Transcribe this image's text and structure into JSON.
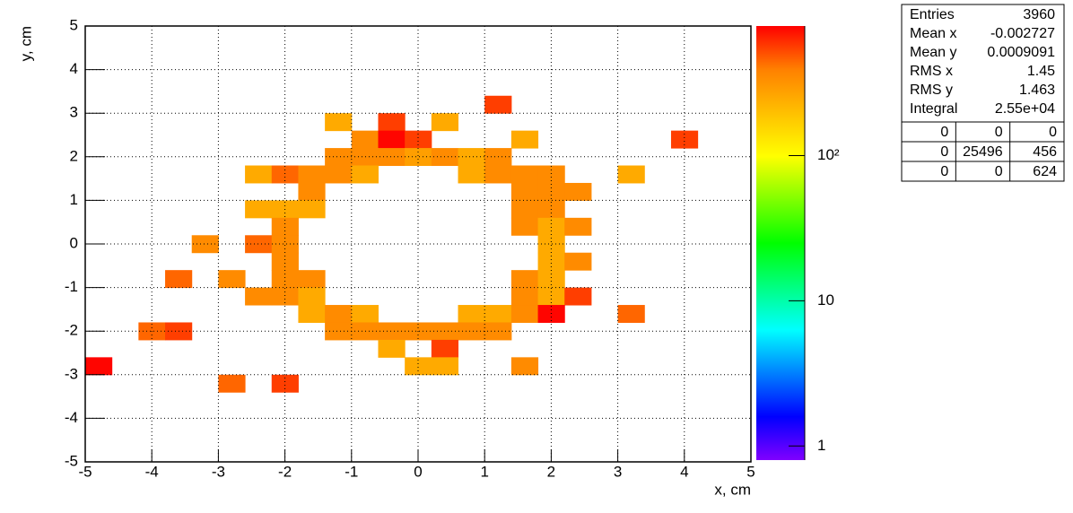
{
  "chart_data": {
    "type": "heatmap",
    "x_label": "x, cm",
    "y_label": "y, cm",
    "xlim": [
      -5,
      5
    ],
    "ylim": [
      -5,
      5
    ],
    "xticks": [
      -5,
      -4,
      -3,
      -2,
      -1,
      0,
      1,
      2,
      3,
      4,
      5
    ],
    "yticks": [
      -5,
      -4,
      -3,
      -2,
      -1,
      0,
      1,
      2,
      3,
      4,
      5
    ],
    "grid": true,
    "bin_width": 0.4,
    "zlim": [
      0.8,
      780
    ],
    "zlog": true,
    "zticks": [
      1,
      10,
      {
        "value": 100,
        "label": "10²"
      }
    ],
    "colorscale": [
      "#8000ff",
      "#0000ff",
      "#0080ff",
      "#00ffff",
      "#00ff80",
      "#00ff00",
      "#80ff00",
      "#ffff00",
      "#ffc000",
      "#ff8000",
      "#ff0000"
    ],
    "cells": [
      {
        "x": 1,
        "y": 3,
        "value": 560
      },
      {
        "x": -1.4,
        "y": 2.6,
        "value": 250
      },
      {
        "x": -0.6,
        "y": 2.6,
        "value": 560
      },
      {
        "x": 0.2,
        "y": 2.6,
        "value": 250
      },
      {
        "x": -1,
        "y": 2.2,
        "value": 350
      },
      {
        "x": -0.6,
        "y": 2.2,
        "value": 760
      },
      {
        "x": -0.2,
        "y": 2.2,
        "value": 560
      },
      {
        "x": 1.4,
        "y": 2.2,
        "value": 250
      },
      {
        "x": 3.8,
        "y": 2.2,
        "value": 560
      },
      {
        "x": -1.4,
        "y": 1.8,
        "value": 350
      },
      {
        "x": -1,
        "y": 1.8,
        "value": 350
      },
      {
        "x": -0.6,
        "y": 1.8,
        "value": 350
      },
      {
        "x": -0.2,
        "y": 1.8,
        "value": 280
      },
      {
        "x": 0.2,
        "y": 1.8,
        "value": 350
      },
      {
        "x": 0.6,
        "y": 1.8,
        "value": 250
      },
      {
        "x": 1,
        "y": 1.8,
        "value": 350
      },
      {
        "x": -2.6,
        "y": 1.4,
        "value": 250
      },
      {
        "x": -2.2,
        "y": 1.4,
        "value": 450
      },
      {
        "x": -1.8,
        "y": 1.4,
        "value": 350
      },
      {
        "x": -1.4,
        "y": 1.4,
        "value": 350
      },
      {
        "x": -1,
        "y": 1.4,
        "value": 250
      },
      {
        "x": 0.6,
        "y": 1.4,
        "value": 250
      },
      {
        "x": 1,
        "y": 1.4,
        "value": 350
      },
      {
        "x": 1.4,
        "y": 1.4,
        "value": 350
      },
      {
        "x": 1.8,
        "y": 1.4,
        "value": 350
      },
      {
        "x": 3,
        "y": 1.4,
        "value": 250
      },
      {
        "x": -1.8,
        "y": 1,
        "value": 350
      },
      {
        "x": 1.4,
        "y": 1,
        "value": 350
      },
      {
        "x": 1.8,
        "y": 1,
        "value": 350
      },
      {
        "x": 2.2,
        "y": 1,
        "value": 350
      },
      {
        "x": -2.6,
        "y": 0.6,
        "value": 250
      },
      {
        "x": -2.2,
        "y": 0.6,
        "value": 250
      },
      {
        "x": -1.8,
        "y": 0.6,
        "value": 250
      },
      {
        "x": 1.4,
        "y": 0.6,
        "value": 350
      },
      {
        "x": 1.8,
        "y": 0.6,
        "value": 350
      },
      {
        "x": -2.2,
        "y": 0.2,
        "value": 350
      },
      {
        "x": 1.4,
        "y": 0.2,
        "value": 350
      },
      {
        "x": 1.8,
        "y": 0.2,
        "value": 250
      },
      {
        "x": 2.2,
        "y": 0.2,
        "value": 350
      },
      {
        "x": -3.4,
        "y": -0.2,
        "value": 350
      },
      {
        "x": -2.6,
        "y": -0.2,
        "value": 450
      },
      {
        "x": -2.2,
        "y": -0.2,
        "value": 350
      },
      {
        "x": 1.8,
        "y": -0.2,
        "value": 250
      },
      {
        "x": -2.2,
        "y": -0.6,
        "value": 350
      },
      {
        "x": 1.8,
        "y": -0.6,
        "value": 250
      },
      {
        "x": 2.2,
        "y": -0.6,
        "value": 350
      },
      {
        "x": -3.8,
        "y": -1,
        "value": 450
      },
      {
        "x": -3,
        "y": -1,
        "value": 350
      },
      {
        "x": -2.2,
        "y": -1,
        "value": 350
      },
      {
        "x": -1.8,
        "y": -1,
        "value": 350
      },
      {
        "x": 1.4,
        "y": -1,
        "value": 350
      },
      {
        "x": 1.8,
        "y": -1,
        "value": 250
      },
      {
        "x": -2.6,
        "y": -1.4,
        "value": 350
      },
      {
        "x": -2.2,
        "y": -1.4,
        "value": 350
      },
      {
        "x": -1.8,
        "y": -1.4,
        "value": 250
      },
      {
        "x": 1.4,
        "y": -1.4,
        "value": 350
      },
      {
        "x": 1.8,
        "y": -1.4,
        "value": 250
      },
      {
        "x": 2.2,
        "y": -1.4,
        "value": 560
      },
      {
        "x": -1.8,
        "y": -1.8,
        "value": 250
      },
      {
        "x": -1.4,
        "y": -1.8,
        "value": 350
      },
      {
        "x": -1,
        "y": -1.8,
        "value": 250
      },
      {
        "x": 0.6,
        "y": -1.8,
        "value": 250
      },
      {
        "x": 1,
        "y": -1.8,
        "value": 250
      },
      {
        "x": 1.4,
        "y": -1.8,
        "value": 350
      },
      {
        "x": 1.8,
        "y": -1.8,
        "value": 760
      },
      {
        "x": 3,
        "y": -1.8,
        "value": 450
      },
      {
        "x": -4.2,
        "y": -2.2,
        "value": 450
      },
      {
        "x": -3.8,
        "y": -2.2,
        "value": 560
      },
      {
        "x": -1.4,
        "y": -2.2,
        "value": 350
      },
      {
        "x": -1,
        "y": -2.2,
        "value": 350
      },
      {
        "x": -0.6,
        "y": -2.2,
        "value": 350
      },
      {
        "x": -0.2,
        "y": -2.2,
        "value": 350
      },
      {
        "x": 0.2,
        "y": -2.2,
        "value": 350
      },
      {
        "x": 0.6,
        "y": -2.2,
        "value": 350
      },
      {
        "x": 1,
        "y": -2.2,
        "value": 350
      },
      {
        "x": -0.6,
        "y": -2.6,
        "value": 250
      },
      {
        "x": 0.2,
        "y": -2.6,
        "value": 560
      },
      {
        "x": -5,
        "y": -3,
        "value": 760
      },
      {
        "x": -0.2,
        "y": -3,
        "value": 250
      },
      {
        "x": 0.2,
        "y": -3,
        "value": 250
      },
      {
        "x": 1.4,
        "y": -3,
        "value": 350
      },
      {
        "x": -3,
        "y": -3.4,
        "value": 450
      },
      {
        "x": -2.2,
        "y": -3.4,
        "value": 560
      }
    ],
    "stats": {
      "rows": [
        [
          "Entries",
          3960
        ],
        [
          "Mean x",
          -0.002727
        ],
        [
          "Mean y",
          0.0009091
        ],
        [
          "RMS x",
          1.45
        ],
        [
          "RMS y",
          1.463
        ],
        [
          "Integral",
          "2.55e+04"
        ]
      ],
      "grid": [
        [
          0,
          0,
          0
        ],
        [
          0,
          25496,
          456
        ],
        [
          0,
          0,
          624
        ]
      ]
    }
  }
}
